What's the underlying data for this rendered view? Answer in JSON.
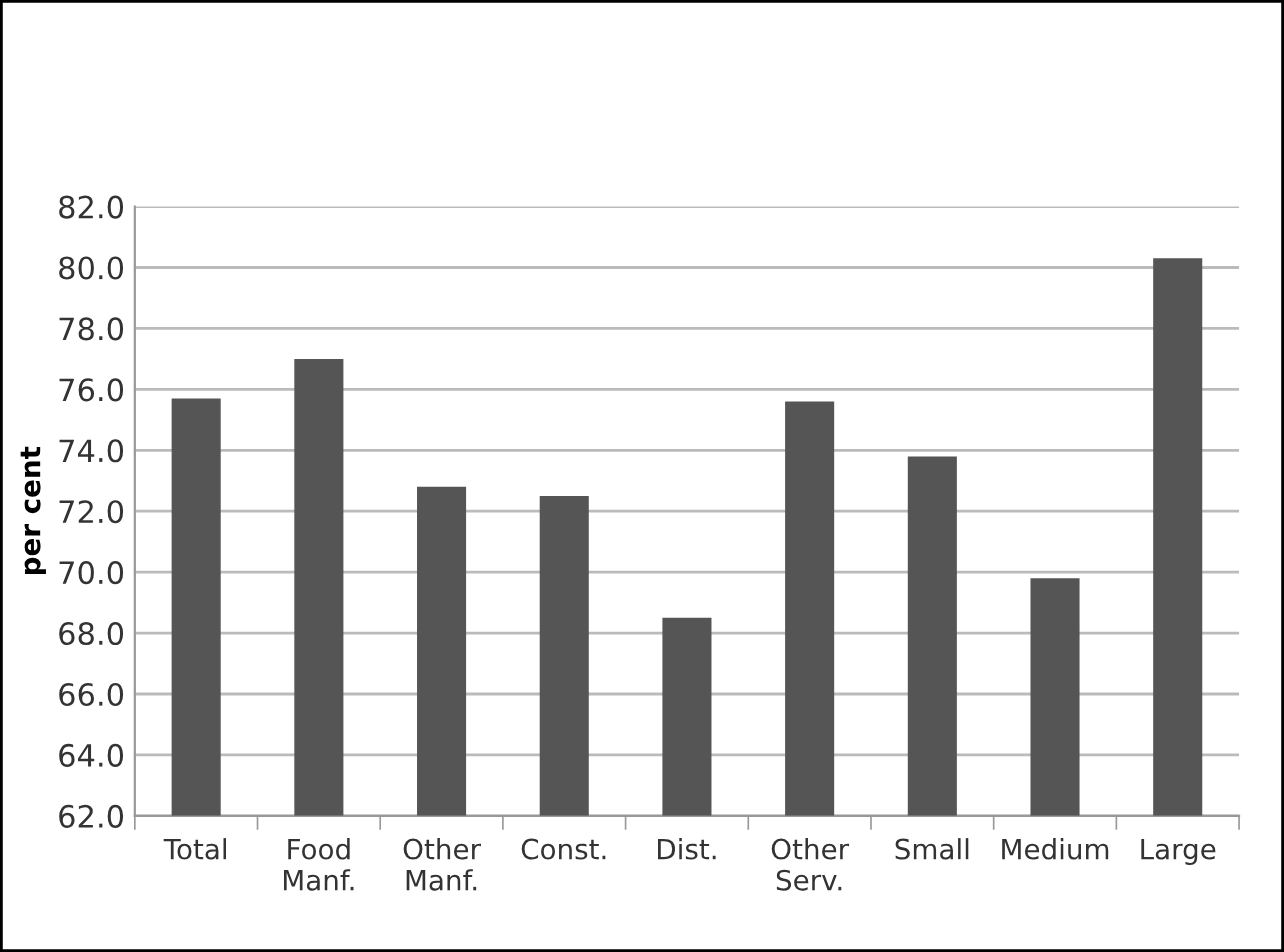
{
  "chart_data": {
    "type": "bar",
    "ylabel": "per cent",
    "categories": [
      "Total",
      "Food\nManf.",
      "Other\nManf.",
      "Const.",
      "Dist.",
      "Other\nServ.",
      "Small",
      "Medium",
      "Large"
    ],
    "values": [
      75.7,
      77.0,
      72.8,
      72.5,
      68.5,
      75.6,
      73.8,
      69.8,
      80.3
    ],
    "color": "#555555",
    "ylim": [
      62,
      82
    ],
    "yticks": [
      {
        "value": 62,
        "label": "62.0"
      },
      {
        "value": 64,
        "label": "64.0"
      },
      {
        "value": 66,
        "label": "66.0"
      },
      {
        "value": 68,
        "label": "68.0"
      },
      {
        "value": 70,
        "label": "70.0"
      },
      {
        "value": 72,
        "label": "72.0"
      },
      {
        "value": 74,
        "label": "74.0"
      },
      {
        "value": 76,
        "label": "76.0"
      },
      {
        "value": 78,
        "label": "78.0"
      },
      {
        "value": 80,
        "label": "80.0"
      },
      {
        "value": 82,
        "label": "82.0"
      }
    ],
    "grid": "y",
    "legend": false
  }
}
